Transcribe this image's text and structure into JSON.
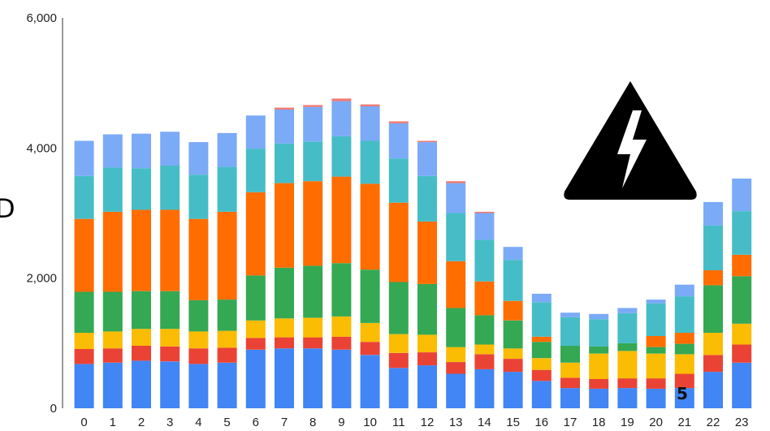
{
  "chart_data": {
    "type": "bar",
    "stacked": true,
    "categories": [
      "0",
      "1",
      "2",
      "3",
      "4",
      "5",
      "6",
      "7",
      "8",
      "9",
      "10",
      "11",
      "12",
      "13",
      "14",
      "15",
      "16",
      "17",
      "18",
      "19",
      "20",
      "21",
      "22",
      "23"
    ],
    "ylim": [
      0,
      6000
    ],
    "yticks": [
      "0",
      "2,000",
      "4,000",
      "6,000"
    ],
    "ytick_values": [
      0,
      2000,
      4000,
      6000
    ],
    "grid": false,
    "legend": "none",
    "series": [
      {
        "color": "#4285f4",
        "values": [
          680,
          700,
          730,
          720,
          680,
          700,
          900,
          920,
          920,
          900,
          820,
          620,
          660,
          530,
          600,
          560,
          420,
          310,
          300,
          310,
          300,
          310,
          560,
          700
        ]
      },
      {
        "color": "#ea4335",
        "values": [
          230,
          220,
          230,
          230,
          240,
          230,
          180,
          170,
          170,
          200,
          200,
          230,
          200,
          180,
          230,
          200,
          170,
          160,
          150,
          150,
          160,
          220,
          260,
          280
        ]
      },
      {
        "color": "#fbbc04",
        "values": [
          250,
          260,
          260,
          270,
          260,
          260,
          270,
          290,
          300,
          310,
          290,
          290,
          270,
          230,
          150,
          160,
          180,
          230,
          390,
          420,
          380,
          300,
          340,
          320
        ]
      },
      {
        "color": "#34a853",
        "values": [
          630,
          610,
          580,
          580,
          480,
          480,
          690,
          780,
          800,
          820,
          820,
          800,
          780,
          600,
          450,
          430,
          250,
          260,
          110,
          120,
          100,
          160,
          730,
          730
        ]
      },
      {
        "color": "#ff6d01",
        "values": [
          1120,
          1230,
          1250,
          1250,
          1250,
          1350,
          1280,
          1300,
          1300,
          1330,
          1320,
          1220,
          960,
          720,
          520,
          300,
          80,
          0,
          0,
          0,
          170,
          170,
          230,
          330
        ]
      },
      {
        "color": "#46bdc6",
        "values": [
          660,
          680,
          640,
          680,
          680,
          690,
          670,
          610,
          610,
          620,
          660,
          680,
          700,
          740,
          640,
          630,
          530,
          440,
          420,
          460,
          500,
          560,
          690,
          670
        ]
      },
      {
        "color": "#7baaf7",
        "values": [
          540,
          510,
          530,
          520,
          500,
          520,
          510,
          520,
          530,
          540,
          530,
          540,
          520,
          460,
          410,
          200,
          130,
          70,
          80,
          80,
          60,
          180,
          360,
          500
        ]
      },
      {
        "color": "#f07b72",
        "values": [
          0,
          0,
          0,
          0,
          0,
          0,
          0,
          30,
          30,
          40,
          30,
          30,
          20,
          30,
          20,
          0,
          0,
          0,
          0,
          0,
          0,
          0,
          0,
          0
        ]
      }
    ],
    "annotations": [
      "5"
    ]
  },
  "decorations": {
    "warning_icon": "high-voltage-warning-icon",
    "cut_letter": "D"
  }
}
